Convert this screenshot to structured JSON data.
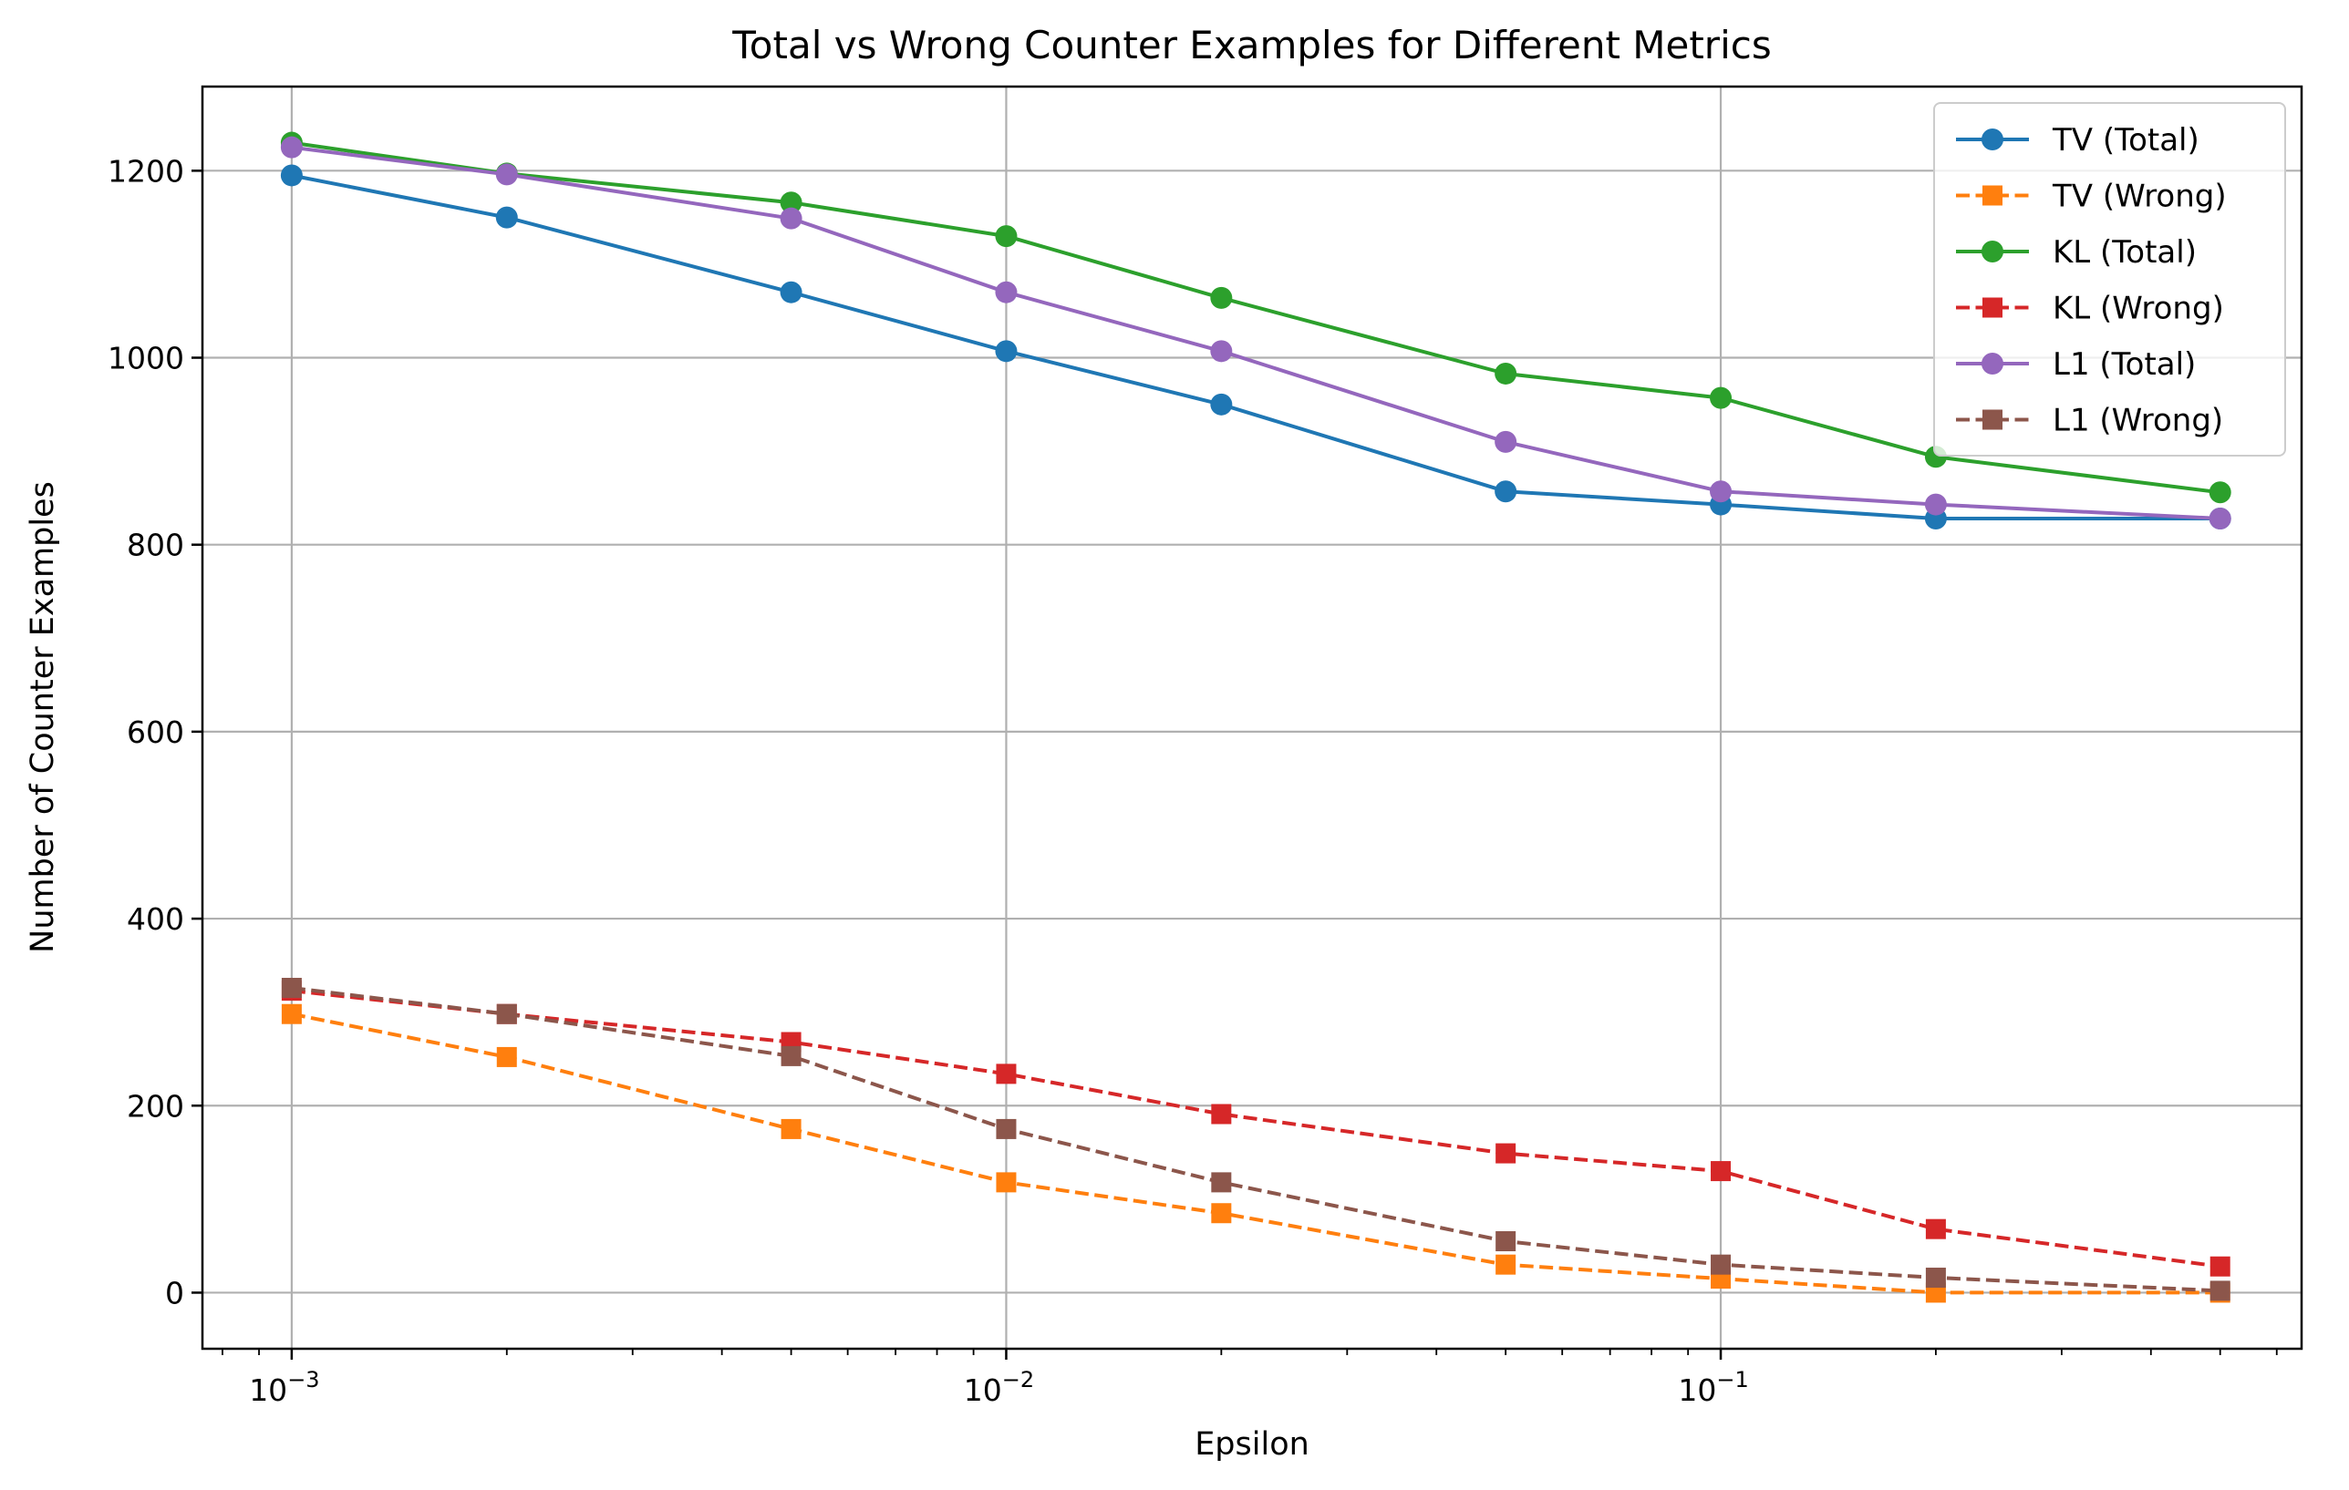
{
  "chart_data": {
    "type": "line",
    "title": "Total vs Wrong Counter Examples for Different Metrics",
    "xlabel": "Epsilon",
    "ylabel": "Number of Counter Examples",
    "x_scale": "log",
    "xlim": [
      0.00075,
      0.65
    ],
    "ylim": [
      -60,
      1290
    ],
    "x": [
      0.001,
      0.002,
      0.005,
      0.01,
      0.02,
      0.05,
      0.1,
      0.2,
      0.5
    ],
    "x_ticks": [
      {
        "value": 0.001,
        "base": "10",
        "exponent": "−3"
      },
      {
        "value": 0.01,
        "base": "10",
        "exponent": "−2"
      },
      {
        "value": 0.1,
        "base": "10",
        "exponent": "−1"
      }
    ],
    "y_ticks": [
      0,
      200,
      400,
      600,
      800,
      1000,
      1200
    ],
    "grid": true,
    "legend_position": "top-right",
    "series": [
      {
        "name": "TV (Total)",
        "color": "#1f77b4",
        "dash": "solid",
        "marker": "circle",
        "values": [
          1195,
          1150,
          1070,
          1007,
          950,
          857,
          843,
          828,
          828
        ]
      },
      {
        "name": "TV (Wrong)",
        "color": "#ff7f0e",
        "dash": "dashed",
        "marker": "square",
        "values": [
          298,
          252,
          175,
          118,
          85,
          30,
          15,
          0,
          0
        ]
      },
      {
        "name": "KL (Total)",
        "color": "#2ca02c",
        "dash": "solid",
        "marker": "circle",
        "values": [
          1230,
          1197,
          1166,
          1130,
          1064,
          983,
          957,
          894,
          856
        ]
      },
      {
        "name": "KL (Wrong)",
        "color": "#d62728",
        "dash": "dashed",
        "marker": "square",
        "values": [
          323,
          298,
          268,
          234,
          191,
          149,
          130,
          68,
          28
        ]
      },
      {
        "name": "L1 (Total)",
        "color": "#9467bd",
        "dash": "solid",
        "marker": "circle",
        "values": [
          1225,
          1196,
          1149,
          1070,
          1007,
          910,
          857,
          843,
          828
        ]
      },
      {
        "name": "L1 (Wrong)",
        "color": "#8c564b",
        "dash": "dashed",
        "marker": "square",
        "values": [
          326,
          298,
          253,
          175,
          118,
          55,
          30,
          16,
          2
        ]
      }
    ]
  }
}
